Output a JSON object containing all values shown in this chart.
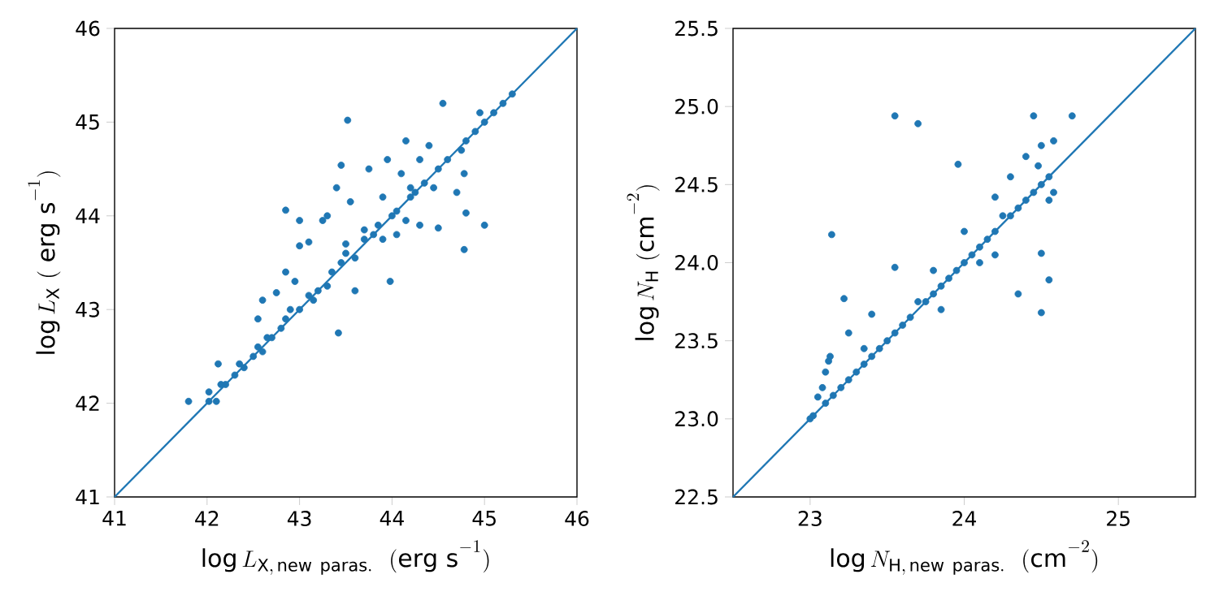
{
  "chart_data": [
    {
      "type": "scatter",
      "xlabel": "\\log L_{\\mathrm{X,\\,new\\ paras.}}\\ \\ (\\mathrm{erg\\ s}^{-1})",
      "ylabel": "\\log L_{\\mathrm{X}}\\ (\\ \\mathrm{erg\\ s}^{-1})",
      "xlim": [
        41,
        46
      ],
      "ylim": [
        41,
        46
      ],
      "xticks": [
        41,
        42,
        43,
        44,
        45,
        46
      ],
      "yticks": [
        41,
        42,
        43,
        44,
        45,
        46
      ],
      "grid": false,
      "series": [
        {
          "marker": "circle",
          "color": "#1f77b4",
          "x": [
            41.8,
            42.02,
            42.02,
            42.1,
            42.12,
            42.15,
            42.2,
            42.3,
            42.35,
            42.4,
            42.5,
            42.55,
            42.55,
            42.6,
            42.65,
            42.6,
            42.7,
            42.75,
            42.8,
            42.85,
            42.85,
            42.9,
            42.85,
            42.95,
            43.0,
            43.0,
            43.0,
            43.1,
            43.1,
            43.15,
            43.2,
            43.25,
            43.3,
            43.3,
            43.35,
            43.4,
            43.42,
            43.45,
            43.45,
            43.5,
            43.5,
            43.52,
            43.55,
            43.6,
            43.6,
            43.7,
            43.75,
            43.8,
            43.85,
            43.9,
            43.95,
            43.98,
            44.0,
            44.05,
            44.1,
            44.15,
            44.2,
            44.15,
            44.25,
            44.3,
            44.3,
            44.35,
            44.4,
            44.45,
            44.5,
            44.5,
            44.55,
            44.6,
            44.7,
            44.75,
            44.8,
            44.78,
            44.8,
            44.78,
            44.9,
            45.0,
            45.0,
            44.95,
            45.1,
            45.2,
            45.3,
            44.05,
            43.7,
            44.2,
            43.9
          ],
          "values": [
            42.02,
            42.12,
            42.02,
            42.02,
            42.42,
            42.2,
            42.2,
            42.3,
            42.42,
            42.38,
            42.5,
            42.6,
            42.9,
            42.55,
            42.7,
            43.1,
            42.7,
            43.18,
            42.8,
            43.4,
            42.9,
            43.0,
            44.06,
            43.3,
            43.0,
            43.95,
            43.68,
            43.72,
            43.15,
            43.1,
            43.2,
            43.95,
            43.25,
            44.0,
            43.4,
            44.3,
            42.75,
            43.5,
            44.54,
            43.6,
            43.7,
            45.02,
            44.15,
            43.55,
            43.2,
            43.75,
            44.5,
            43.8,
            43.9,
            43.75,
            44.6,
            43.3,
            44.0,
            44.05,
            44.45,
            44.8,
            44.2,
            43.95,
            44.25,
            44.6,
            43.9,
            44.35,
            44.75,
            44.3,
            44.5,
            43.87,
            45.2,
            44.6,
            44.25,
            44.7,
            44.8,
            44.45,
            44.03,
            43.64,
            44.9,
            45.0,
            43.9,
            45.1,
            45.1,
            45.2,
            45.3,
            43.8,
            43.85,
            44.3,
            44.2
          ]
        },
        {
          "type": "line",
          "marker": "none",
          "color": "#1f77b4",
          "x": [
            41,
            46
          ],
          "values": [
            41,
            46
          ]
        }
      ]
    },
    {
      "type": "scatter",
      "xlabel": "\\log N_{\\mathrm{H,\\,new\\ paras.}}\\ \\ (\\mathrm{cm}^{-2})",
      "ylabel": "\\log N_{\\mathrm{H}}\\ (\\mathrm{cm}^{-2})",
      "xlim": [
        22.5,
        25.5
      ],
      "ylim": [
        22.5,
        25.5
      ],
      "xticks": [
        23,
        24,
        25
      ],
      "yticks": [
        22.5,
        {
          "value": 23,
          "label": "23.0"
        },
        23.5,
        {
          "value": 24,
          "label": "24.0"
        },
        24.5,
        {
          "value": 25,
          "label": "25.0"
        },
        25.5
      ],
      "grid": false,
      "series": [
        {
          "marker": "circle",
          "color": "#1f77b4",
          "x": [
            23.0,
            23.02,
            23.05,
            23.08,
            23.1,
            23.1,
            23.12,
            23.13,
            23.15,
            23.2,
            23.14,
            23.22,
            23.25,
            23.25,
            23.3,
            23.35,
            23.35,
            23.4,
            23.4,
            23.45,
            23.5,
            23.55,
            23.55,
            23.55,
            23.6,
            23.65,
            23.7,
            23.7,
            23.75,
            23.8,
            23.8,
            23.85,
            23.85,
            23.9,
            23.95,
            23.96,
            24.0,
            24.0,
            24.05,
            24.1,
            24.1,
            24.15,
            24.2,
            24.2,
            24.2,
            24.25,
            24.3,
            24.3,
            24.35,
            24.35,
            24.4,
            24.4,
            24.45,
            24.45,
            24.5,
            24.5,
            24.5,
            24.5,
            24.55,
            24.55,
            24.55,
            24.58,
            24.58,
            24.7,
            24.48
          ],
          "values": [
            23.0,
            23.02,
            23.14,
            23.2,
            23.1,
            23.3,
            23.37,
            23.4,
            23.15,
            23.2,
            24.18,
            23.77,
            23.25,
            23.55,
            23.3,
            23.35,
            23.45,
            23.4,
            23.67,
            23.45,
            23.5,
            23.55,
            24.94,
            23.97,
            23.6,
            23.65,
            24.89,
            23.75,
            23.75,
            23.8,
            23.95,
            23.85,
            23.7,
            23.9,
            23.95,
            24.63,
            24.0,
            24.2,
            24.05,
            24.1,
            24.0,
            24.15,
            24.2,
            24.05,
            24.42,
            24.3,
            24.3,
            24.55,
            24.35,
            23.8,
            24.4,
            24.68,
            24.45,
            24.94,
            24.5,
            24.75,
            24.06,
            23.68,
            24.55,
            24.4,
            23.89,
            24.78,
            24.45,
            24.94,
            24.62
          ]
        },
        {
          "type": "line",
          "marker": "none",
          "color": "#1f77b4",
          "x": [
            22.5,
            25.5
          ],
          "values": [
            22.5,
            25.5
          ]
        }
      ]
    }
  ]
}
